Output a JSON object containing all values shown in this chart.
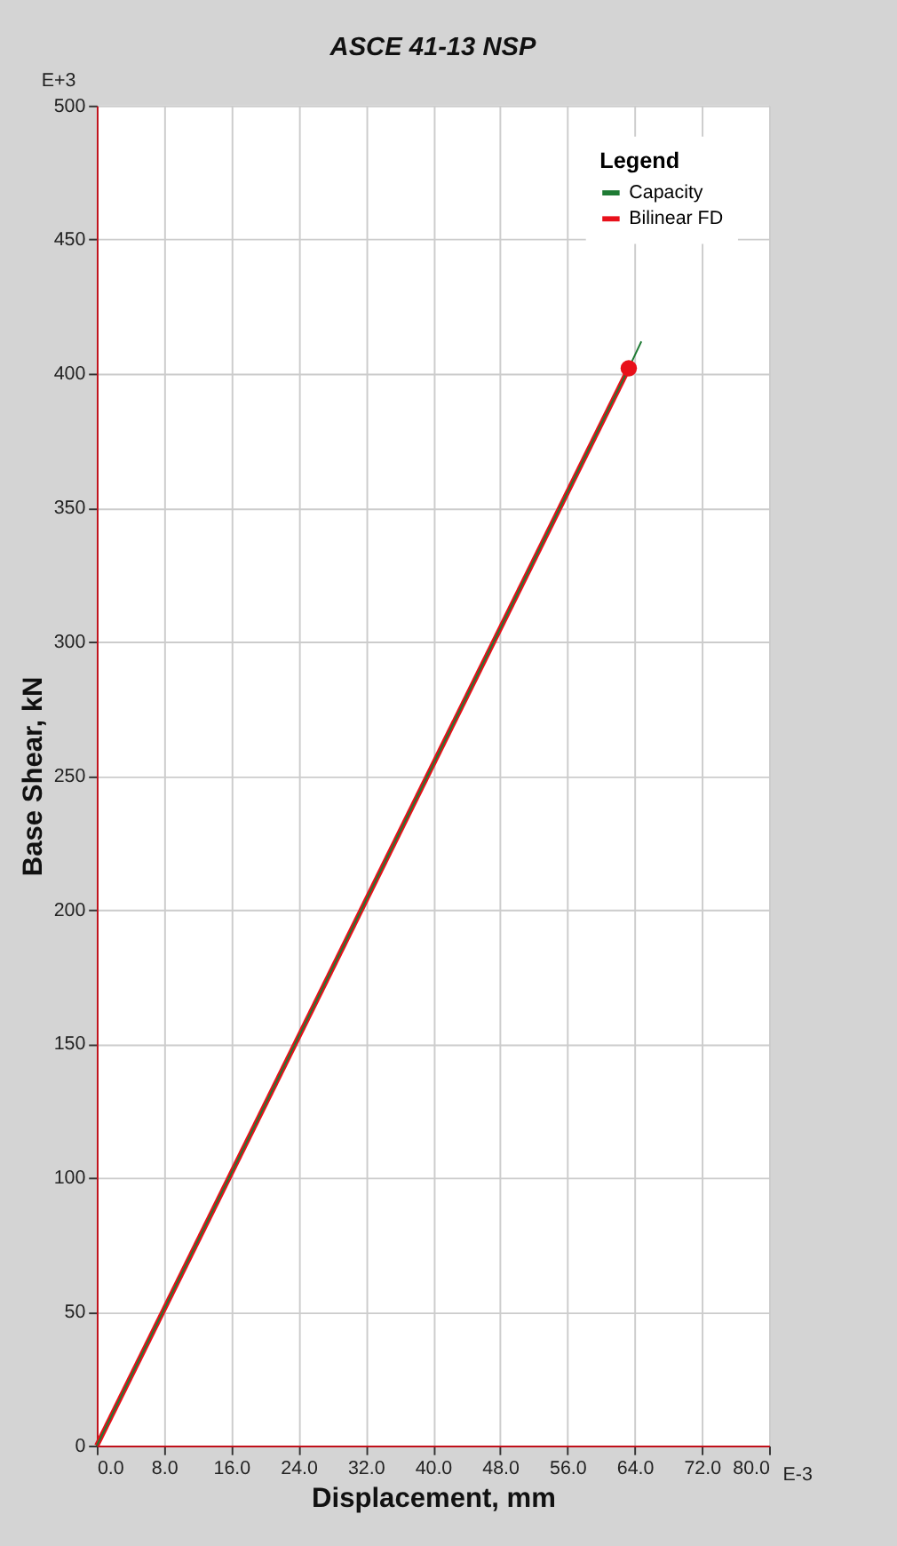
{
  "chart_data": {
    "type": "line",
    "title": "ASCE 41-13 NSP",
    "xlabel": "Displacement, mm",
    "ylabel": "Base Shear, kN",
    "legend_title": "Legend",
    "annotations": [
      "E+3",
      "E-3"
    ],
    "series": [
      {
        "name": "Capacity",
        "color": "#1e7b34",
        "x": [
          0,
          63.3,
          64.8
        ],
        "values": [
          0,
          402,
          412
        ]
      },
      {
        "name": "Bilinear FD",
        "color": "#e8101a",
        "x": [
          0,
          63.3
        ],
        "values": [
          0,
          402
        ]
      },
      {
        "type": "scatter",
        "color": "#e8101a",
        "x": [
          63.3
        ],
        "values": [
          402
        ]
      }
    ],
    "xlim": [
      0,
      80
    ],
    "ylim": [
      0,
      500
    ],
    "xticks": [
      {
        "value": 0,
        "label": "0.0"
      },
      {
        "value": 8,
        "label": "8.0"
      },
      {
        "value": 16,
        "label": "16.0"
      },
      {
        "value": 24,
        "label": "24.0"
      },
      {
        "value": 32,
        "label": "32.0"
      },
      {
        "value": 40,
        "label": "40.0"
      },
      {
        "value": 48,
        "label": "48.0"
      },
      {
        "value": 56,
        "label": "56.0"
      },
      {
        "value": 64,
        "label": "64.0"
      },
      {
        "value": 72,
        "label": "72.0"
      },
      {
        "value": 80,
        "label": "80.0"
      }
    ],
    "yticks": [
      0,
      50,
      100,
      150,
      200,
      250,
      300,
      350,
      400,
      450,
      500
    ],
    "grid": true,
    "legend": "top right",
    "line_style": "solid"
  }
}
